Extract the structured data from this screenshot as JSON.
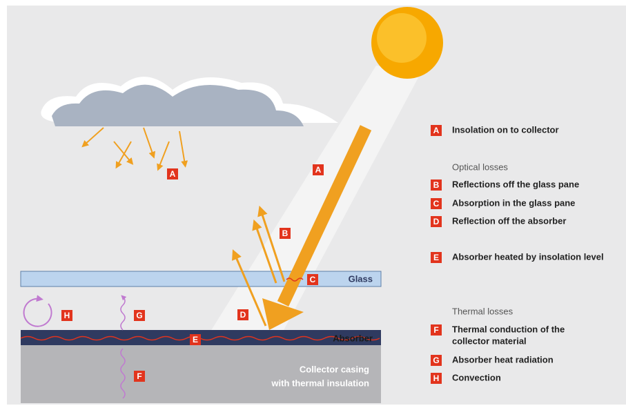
{
  "scene": {
    "markers": [
      "A",
      "A",
      "B",
      "C",
      "D",
      "E",
      "F",
      "G",
      "H"
    ],
    "glass": "Glass",
    "absorber": "Absorber",
    "casing": [
      "Collector casing",
      "with thermal insulation"
    ]
  },
  "legend": [
    {
      "letter": "A",
      "lines": [
        "Insolation on to collector"
      ]
    },
    {
      "heading": "Optical losses"
    },
    {
      "letter": "B",
      "lines": [
        "Reflections off the glass pane"
      ]
    },
    {
      "letter": "C",
      "lines": [
        "Absorption in the glass pane"
      ]
    },
    {
      "letter": "D",
      "lines": [
        "Reflection off the absorber"
      ]
    },
    {
      "letter": "E",
      "lines": [
        "Absorber heated by insolation level"
      ]
    },
    {
      "heading": "Thermal losses"
    },
    {
      "letter": "F",
      "lines": [
        "Thermal conduction of the",
        "collector material"
      ]
    },
    {
      "letter": "G",
      "lines": [
        "Absorber heat radiation"
      ]
    },
    {
      "letter": "H",
      "lines": [
        "Convection"
      ]
    }
  ]
}
